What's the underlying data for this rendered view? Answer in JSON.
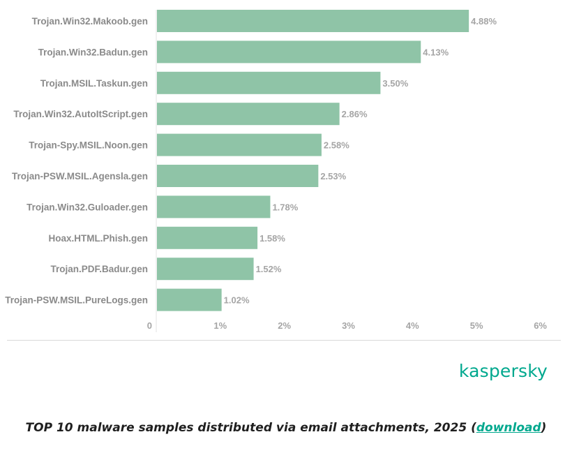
{
  "chart_data": {
    "type": "bar",
    "orientation": "horizontal",
    "categories": [
      "Trojan.Win32.Makoob.gen",
      "Trojan.Win32.Badun.gen",
      "Trojan.MSIL.Taskun.gen",
      "Trojan.Win32.AutoItScript.gen",
      "Trojan-Spy.MSIL.Noon.gen",
      "Trojan-PSW.MSIL.Agensla.gen",
      "Trojan.Win32.Guloader.gen",
      "Hoax.HTML.Phish.gen",
      "Trojan.PDF.Badur.gen",
      "Trojan-PSW.MSIL.PureLogs.gen"
    ],
    "values": [
      4.88,
      4.13,
      3.5,
      2.86,
      2.58,
      2.53,
      1.78,
      1.58,
      1.52,
      1.02
    ],
    "value_labels": [
      "4.88%",
      "4.13%",
      "3.50%",
      "2.86%",
      "2.58%",
      "2.53%",
      "1.78%",
      "1.58%",
      "1.52%",
      "1.02%"
    ],
    "xlim": [
      0,
      6
    ],
    "xticks": [
      0,
      1,
      2,
      3,
      4,
      5,
      6
    ],
    "xtick_labels": [
      "0",
      "1%",
      "2%",
      "3%",
      "4%",
      "5%",
      "6%"
    ],
    "grid": false,
    "title": "TOP 10 malware samples distributed via email attachments, 2025"
  },
  "colors": {
    "bar": "#8fc4a7",
    "brand": "#00a88e",
    "link": "#00a88e"
  },
  "brand": {
    "name": "kaspersky"
  },
  "caption": {
    "text": "TOP 10 malware samples distributed via email attachments, 2025",
    "open_paren": " (",
    "link_label": "download",
    "close_paren": ")"
  }
}
